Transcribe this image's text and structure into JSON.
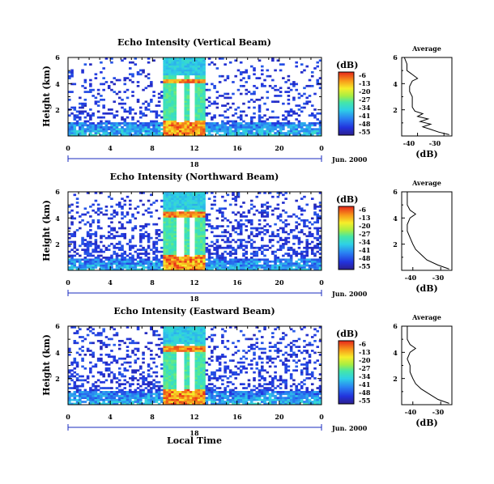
{
  "chart_data": [
    {
      "type": "heatmap",
      "title": "Echo Intensity (Vertical Beam)",
      "ylabel": "Height (km)",
      "xlim": [
        0,
        24
      ],
      "ylim": [
        0,
        6
      ],
      "xticks": [
        "0",
        "4",
        "8",
        "12",
        "16",
        "20",
        "0"
      ],
      "yticks": [
        "2",
        "4",
        "6"
      ],
      "date_day": "18",
      "date_label": "Jun. 2000",
      "colorbar": {
        "unit": "(dB)",
        "ticks": [
          "-6",
          "-13",
          "-20",
          "-27",
          "-34",
          "-41",
          "-48",
          "-55"
        ],
        "range": [
          -55,
          -6
        ]
      },
      "scene": {
        "low_echo_top_km": 1.1,
        "strong_echo_hours": [
          9,
          13
        ],
        "echo_top_km": 4.2,
        "background_coverage": 0.22
      },
      "profile": {
        "title": "Average",
        "xlabel": "(dB)",
        "xticks": [
          "-40",
          "-30"
        ],
        "xlim": [
          -46,
          -27
        ],
        "yticks": [
          "2",
          "4",
          "6"
        ],
        "ylim": [
          0,
          6
        ],
        "height_km": [
          0.1,
          0.3,
          0.5,
          0.7,
          0.9,
          1.1,
          1.3,
          1.5,
          1.7,
          1.9,
          2.2,
          2.6,
          3.0,
          3.4,
          3.8,
          4.2,
          4.4,
          4.7,
          5.0,
          5.5,
          6.0
        ],
        "db": [
          -28,
          -32,
          -35,
          -38,
          -35,
          -39,
          -36,
          -40,
          -38,
          -41,
          -42,
          -42,
          -42,
          -43,
          -43,
          -42,
          -40,
          -42,
          -44,
          -44,
          -45
        ]
      }
    },
    {
      "type": "heatmap",
      "title": "Echo Intensity (Northward Beam)",
      "ylabel": "Height (km)",
      "xlim": [
        0,
        24
      ],
      "ylim": [
        0,
        6
      ],
      "xticks": [
        "0",
        "4",
        "8",
        "12",
        "16",
        "20",
        "0"
      ],
      "yticks": [
        "2",
        "4",
        "6"
      ],
      "date_day": "18",
      "date_label": "Jun. 2000",
      "colorbar": {
        "unit": "(dB)",
        "ticks": [
          "-6",
          "-13",
          "-20",
          "-27",
          "-34",
          "-41",
          "-48",
          "-55"
        ],
        "range": [
          -55,
          -6
        ]
      },
      "scene": {
        "low_echo_top_km": 0.9,
        "strong_echo_hours": [
          9,
          13
        ],
        "echo_top_km": 4.3,
        "background_coverage": 0.38
      },
      "profile": {
        "title": "Average",
        "xlabel": "(dB)",
        "xticks": [
          "-40",
          "-30"
        ],
        "xlim": [
          -44,
          -26
        ],
        "yticks": [
          "2",
          "4",
          "6"
        ],
        "ylim": [
          0,
          6
        ],
        "height_km": [
          0.1,
          0.4,
          0.8,
          1.2,
          1.6,
          2.0,
          2.5,
          3.0,
          3.5,
          4.0,
          4.3,
          4.6,
          5.0,
          5.5,
          6.0
        ],
        "db": [
          -27,
          -31,
          -35,
          -37,
          -39,
          -40,
          -41,
          -42,
          -42,
          -41,
          -39,
          -41,
          -42,
          -42,
          -42
        ]
      }
    },
    {
      "type": "heatmap",
      "title": "Echo Intensity (Eastward Beam)",
      "ylabel": "Height (km)",
      "xlabel": "Local Time",
      "xlim": [
        0,
        24
      ],
      "ylim": [
        0,
        6
      ],
      "xticks": [
        "0",
        "4",
        "8",
        "12",
        "16",
        "20",
        "0"
      ],
      "yticks": [
        "2",
        "4",
        "6"
      ],
      "date_day": "18",
      "date_label": "Jun. 2000",
      "colorbar": {
        "unit": "(dB)",
        "ticks": [
          "-6",
          "-13",
          "-20",
          "-27",
          "-34",
          "-41",
          "-48",
          "-55"
        ],
        "range": [
          -55,
          -6
        ]
      },
      "scene": {
        "low_echo_top_km": 1.0,
        "strong_echo_hours": [
          9,
          13
        ],
        "echo_top_km": 4.3,
        "background_coverage": 0.36
      },
      "profile": {
        "title": "Average",
        "xlabel": "(dB)",
        "xticks": [
          "-40",
          "-30"
        ],
        "xlim": [
          -44,
          -26
        ],
        "yticks": [
          "2",
          "4",
          "6"
        ],
        "ylim": [
          0,
          6
        ],
        "height_km": [
          0.1,
          0.4,
          0.8,
          1.2,
          1.6,
          2.0,
          2.5,
          3.0,
          3.5,
          4.0,
          4.3,
          4.6,
          5.0,
          5.5,
          6.0
        ],
        "db": [
          -27,
          -31,
          -34,
          -37,
          -39,
          -40,
          -41,
          -41,
          -42,
          -41,
          -39,
          -41,
          -42,
          -42,
          -42
        ]
      }
    }
  ]
}
